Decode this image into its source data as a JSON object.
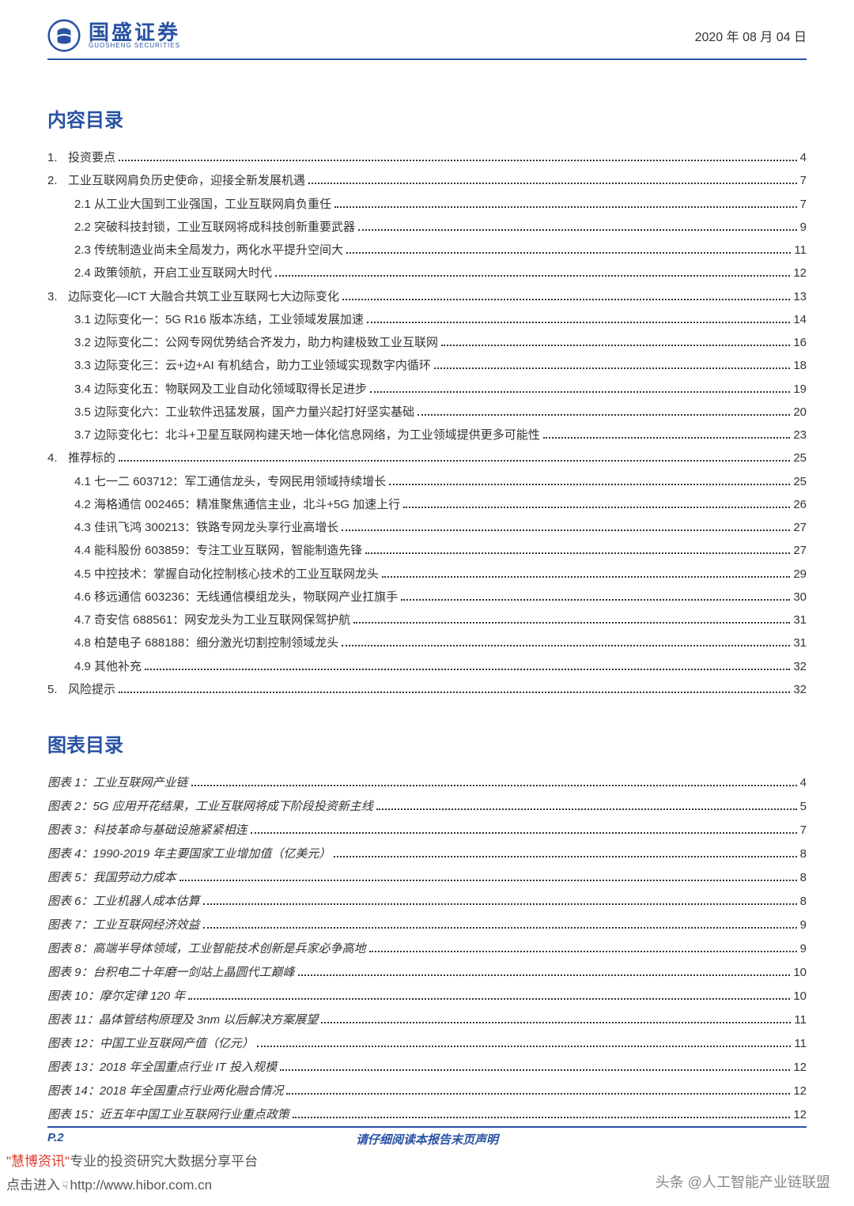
{
  "header": {
    "logo_cn": "国盛证券",
    "logo_en": "GUOSHENG SECURITIES",
    "date": "2020 年 08 月 04 日"
  },
  "toc_title": "内容目录",
  "toc": [
    {
      "level": 1,
      "num": "1.",
      "label": "投资要点",
      "page": "4"
    },
    {
      "level": 1,
      "num": "2.",
      "label": "工业互联网肩负历史使命，迎接全新发展机遇",
      "page": "7"
    },
    {
      "level": 2,
      "num": "",
      "label": "2.1 从工业大国到工业强国，工业互联网肩负重任",
      "page": "7"
    },
    {
      "level": 2,
      "num": "",
      "label": "2.2 突破科技封锁，工业互联网将成科技创新重要武器",
      "page": "9"
    },
    {
      "level": 2,
      "num": "",
      "label": "2.3 传统制造业尚未全局发力，两化水平提升空间大",
      "page": "11"
    },
    {
      "level": 2,
      "num": "",
      "label": "2.4 政策领航，开启工业互联网大时代",
      "page": "12"
    },
    {
      "level": 1,
      "num": "3.",
      "label": "边际变化—ICT 大融合共筑工业互联网七大边际变化",
      "page": "13"
    },
    {
      "level": 2,
      "num": "",
      "label": "3.1 边际变化一：5G R16 版本冻结，工业领域发展加速",
      "page": "14"
    },
    {
      "level": 2,
      "num": "",
      "label": "3.2 边际变化二：公网专网优势结合齐发力，助力构建极致工业互联网",
      "page": "16"
    },
    {
      "level": 2,
      "num": "",
      "label": "3.3 边际变化三：云+边+AI 有机结合，助力工业领域实现数字内循环",
      "page": "18"
    },
    {
      "level": 2,
      "num": "",
      "label": "3.4 边际变化五：物联网及工业自动化领域取得长足进步",
      "page": "19"
    },
    {
      "level": 2,
      "num": "",
      "label": "3.5 边际变化六：工业软件迅猛发展，国产力量兴起打好坚实基础",
      "page": "20"
    },
    {
      "level": 2,
      "num": "",
      "label": "3.7 边际变化七：北斗+卫星互联网构建天地一体化信息网络，为工业领域提供更多可能性",
      "page": "23"
    },
    {
      "level": 1,
      "num": "4.",
      "label": "推荐标的",
      "page": "25"
    },
    {
      "level": 2,
      "num": "",
      "label": "4.1 七一二 603712：军工通信龙头，专网民用领域持续增长",
      "page": "25"
    },
    {
      "level": 2,
      "num": "",
      "label": "4.2 海格通信 002465：精准聚焦通信主业，北斗+5G 加速上行",
      "page": "26"
    },
    {
      "level": 2,
      "num": "",
      "label": "4.3 佳讯飞鸿 300213：铁路专网龙头享行业高增长",
      "page": "27"
    },
    {
      "level": 2,
      "num": "",
      "label": "4.4 能科股份 603859：专注工业互联网，智能制造先锋",
      "page": "27"
    },
    {
      "level": 2,
      "num": "",
      "label": "4.5 中控技术：掌握自动化控制核心技术的工业互联网龙头",
      "page": "29"
    },
    {
      "level": 2,
      "num": "",
      "label": "4.6 移远通信 603236：无线通信模组龙头，物联网产业扛旗手",
      "page": "30"
    },
    {
      "level": 2,
      "num": "",
      "label": "4.7 奇安信 688561：网安龙头为工业互联网保驾护航",
      "page": "31"
    },
    {
      "level": 2,
      "num": "",
      "label": "4.8 柏楚电子 688188：细分激光切割控制领域龙头",
      "page": "31"
    },
    {
      "level": 2,
      "num": "",
      "label": "4.9 其他补充",
      "page": "32"
    },
    {
      "level": 1,
      "num": "5.",
      "label": "风险提示",
      "page": "32"
    }
  ],
  "figures_title": "图表目录",
  "figures": [
    {
      "label": "图表 1：工业互联网产业链",
      "page": "4"
    },
    {
      "label": "图表 2：5G 应用开花结果，工业互联网将成下阶段投资新主线",
      "page": "5"
    },
    {
      "label": "图表 3：科技革命与基础设施紧紧相连",
      "page": "7"
    },
    {
      "label": "图表 4：1990-2019 年主要国家工业增加值（亿美元）",
      "page": "8"
    },
    {
      "label": "图表 5：我国劳动力成本",
      "page": "8"
    },
    {
      "label": "图表 6：工业机器人成本估算",
      "page": "8"
    },
    {
      "label": "图表 7：工业互联网经济效益",
      "page": "9"
    },
    {
      "label": "图表 8：高端半导体领域，工业智能技术创新是兵家必争高地",
      "page": "9"
    },
    {
      "label": "图表 9：台积电二十年磨一剑站上晶圆代工巅峰",
      "page": "10"
    },
    {
      "label": "图表 10：摩尔定律 120 年",
      "page": "10"
    },
    {
      "label": "图表 11：晶体管结构原理及 3nm 以后解决方案展望",
      "page": "11"
    },
    {
      "label": "图表 12：中国工业互联网产值（亿元）",
      "page": "11"
    },
    {
      "label": "图表 13：2018 年全国重点行业 IT 投入规模",
      "page": "12"
    },
    {
      "label": "图表 14：2018 年全国重点行业两化融合情况",
      "page": "12"
    },
    {
      "label": "图表 15：近五年中国工业互联网行业重点政策",
      "page": "12"
    }
  ],
  "footer": {
    "page_label": "P.2",
    "disclaimer": "请仔细阅读本报告末页声明"
  },
  "watermark": {
    "brand": "\"慧博资讯\"",
    "line1_rest": "专业的投资研究大数据分享平台",
    "line2_prefix": "点击进入",
    "url": "http://www.hibor.com.cn"
  },
  "credit": "头条 @人工智能产业链联盟",
  "colors": {
    "brand_blue": "#2952a3",
    "text": "#333333",
    "watermark_brand": "#dc3b2a"
  }
}
